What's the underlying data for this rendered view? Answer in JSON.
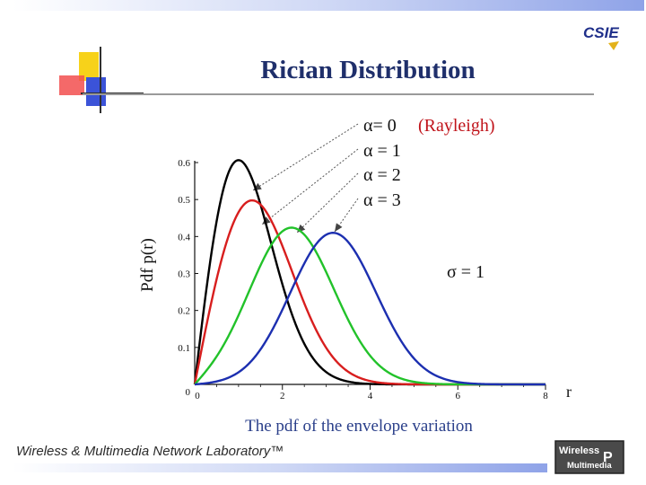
{
  "slide": {
    "title": "Rician Distribution",
    "footer": "Wireless & Multimedia Network Laboratory™",
    "logo_top": "CSIE",
    "logo_bottom_line1": "Wireless",
    "logo_bottom_line2": "Multimedia",
    "logo_bottom_mark": "P"
  },
  "chart_data": {
    "type": "line",
    "title": "",
    "caption": "The pdf of the envelope variation",
    "xlabel": "r",
    "ylabel": "Pdf p(r)",
    "xlim": [
      0,
      8
    ],
    "ylim": [
      0,
      0.6
    ],
    "x_ticks": [
      "0",
      "2",
      "4",
      "6",
      "8"
    ],
    "y_ticks": [
      "0",
      "0.1",
      "0.2",
      "0.3",
      "0.4",
      "0.5",
      "0.6"
    ],
    "sigma_label": "σ = 1",
    "grid": false,
    "series": [
      {
        "name": "α= 0",
        "note": "(Rayleigh)",
        "alpha": 0,
        "sigma": 1,
        "color": "#000000"
      },
      {
        "name": "α = 1",
        "note": "",
        "alpha": 1,
        "sigma": 1,
        "color": "#d81e1e"
      },
      {
        "name": "α = 2",
        "note": "",
        "alpha": 2,
        "sigma": 1,
        "color": "#22c22a"
      },
      {
        "name": "α = 3",
        "note": "",
        "alpha": 3,
        "sigma": 1,
        "color": "#1c2fb0"
      }
    ],
    "note_color": "#c0141b"
  }
}
